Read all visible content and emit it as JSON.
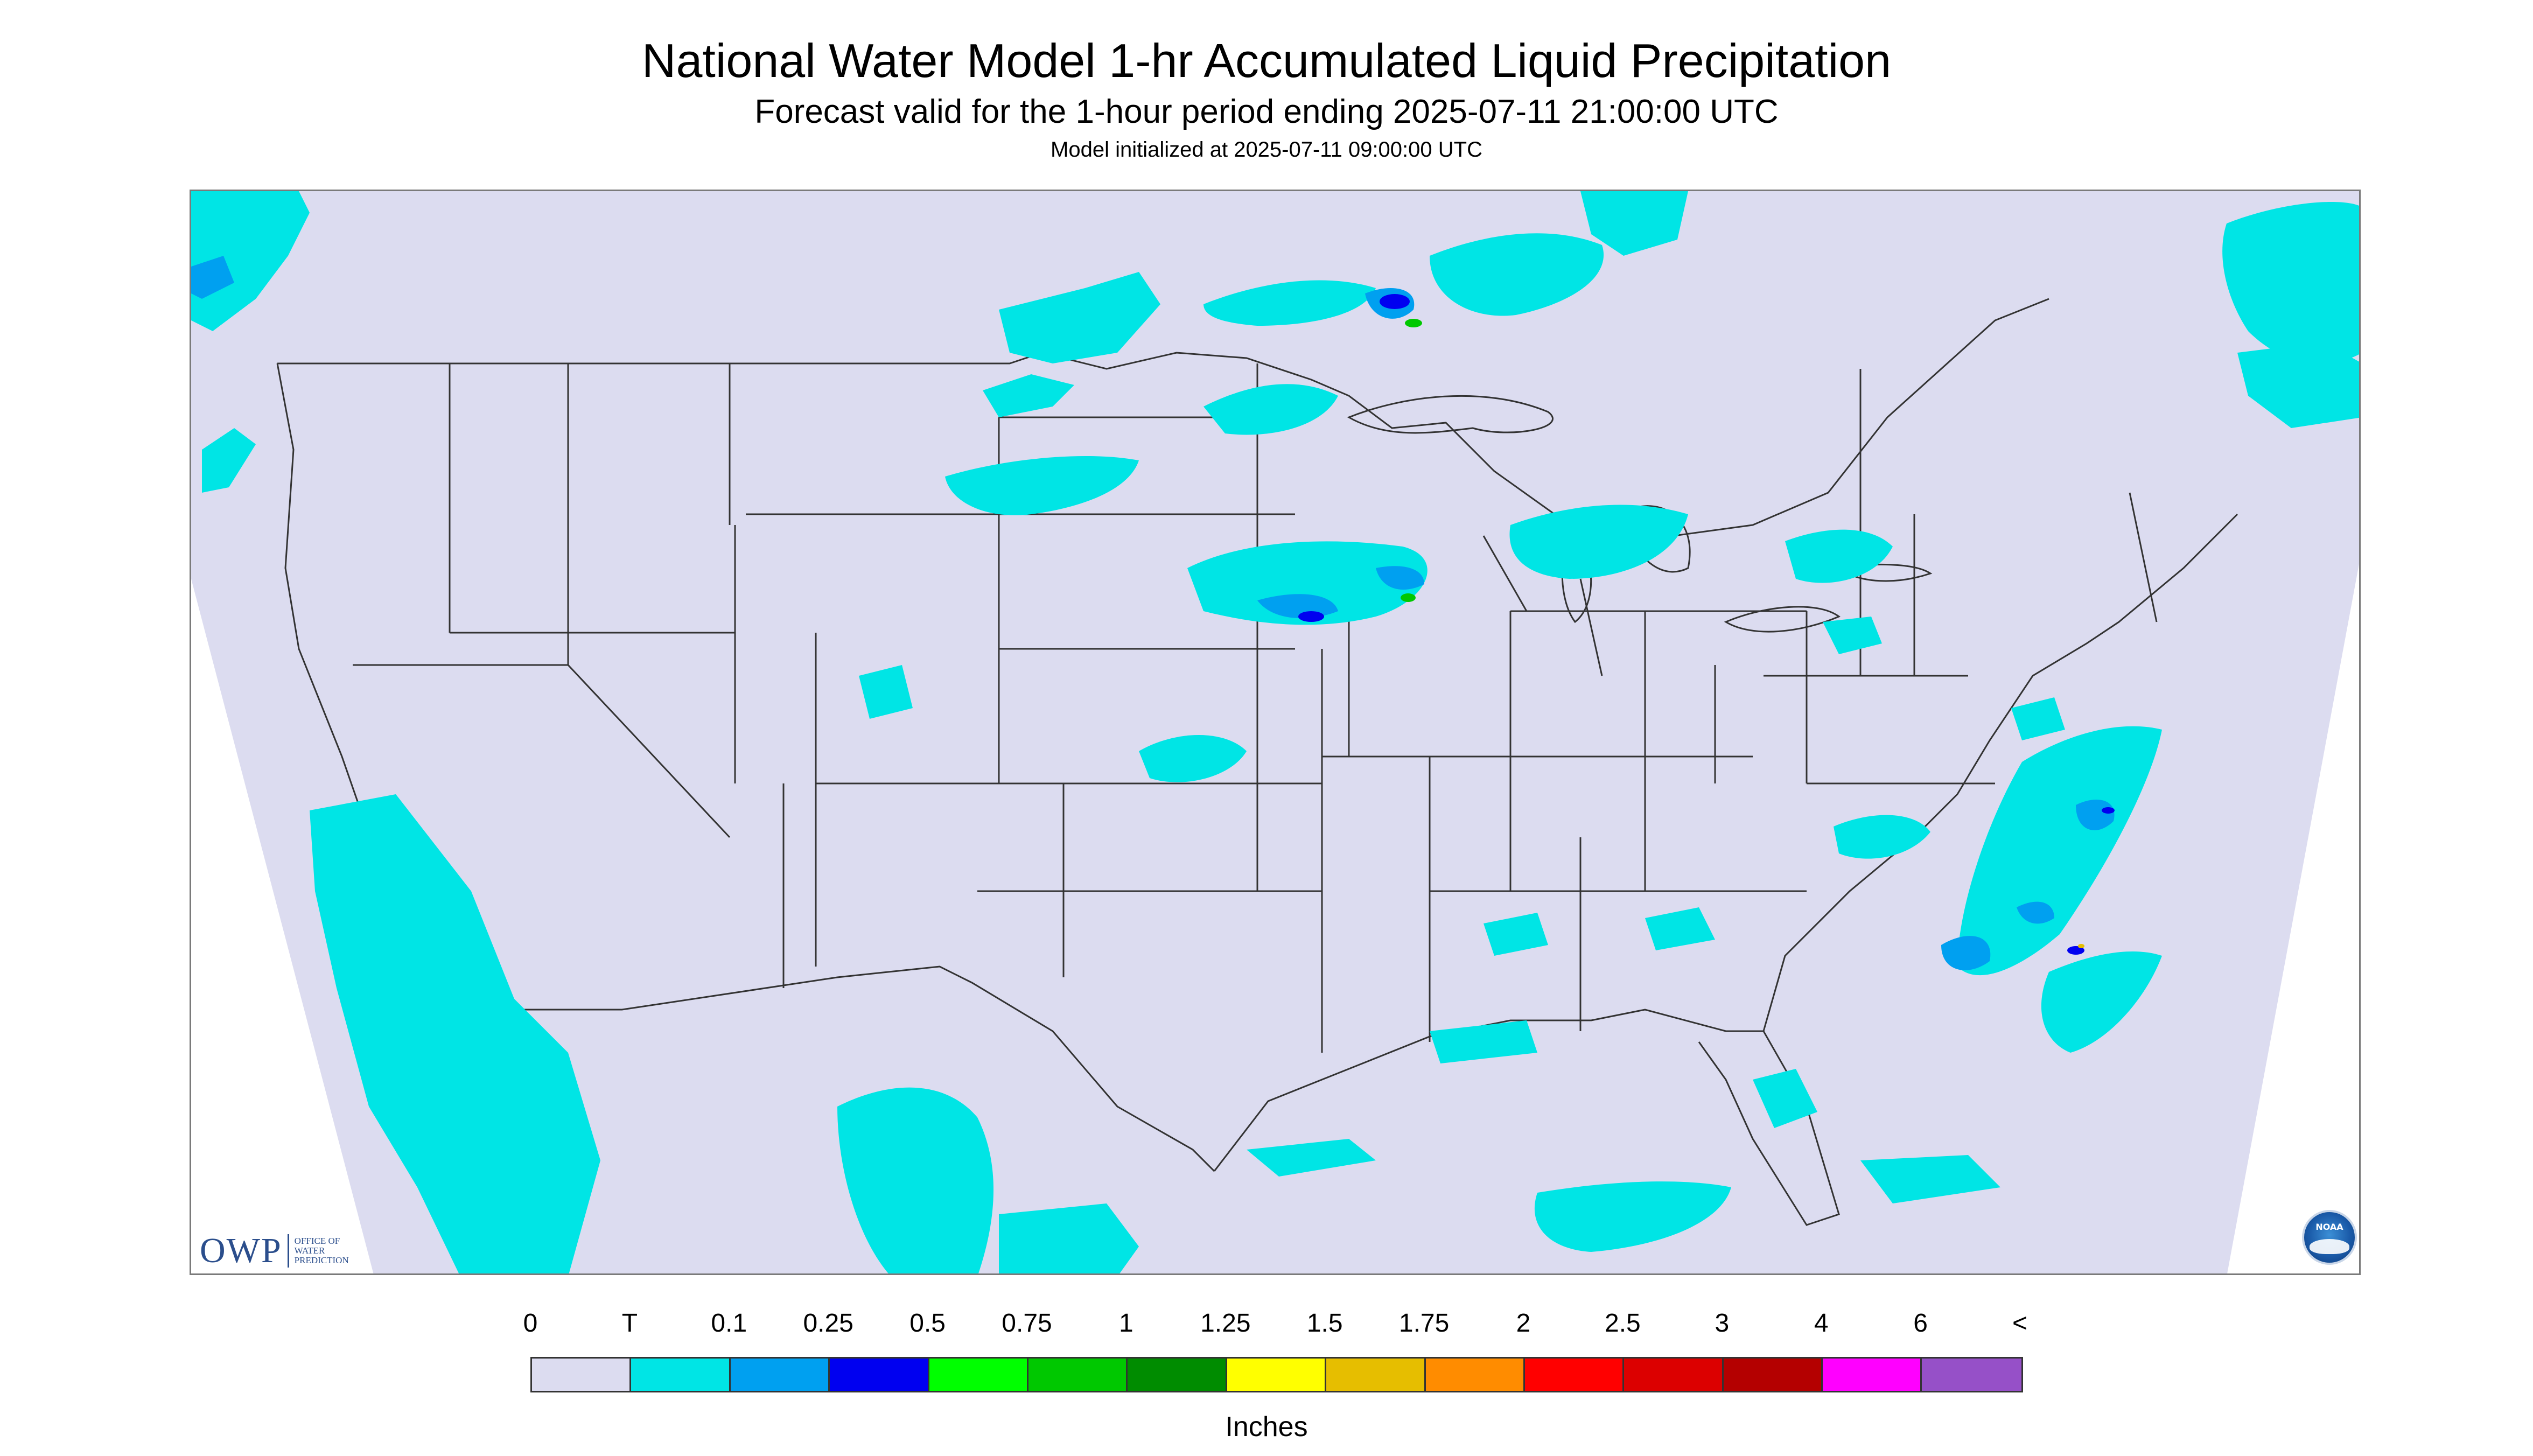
{
  "header": {
    "title": "National Water Model 1-hr Accumulated Liquid Precipitation",
    "subtitle": "Forecast valid for the 1-hour period ending 2025-07-11 21:00:00 UTC",
    "init_text": "Model initialized at 2025-07-11 09:00:00 UTC"
  },
  "logos": {
    "owp_mark": "OWP",
    "owp_text": "OFFICE OF WATER PREDICTION",
    "noaa_text": "NOAA"
  },
  "colors": {
    "background_field": "#dcdcf0",
    "precip_trace": "#00e5e5",
    "precip_light": "#00a0f0",
    "precip_heavy": "#0000f0",
    "boundary": "#333333"
  },
  "legend": {
    "labels": [
      "0",
      "T",
      "0.1",
      "0.25",
      "0.5",
      "0.75",
      "1",
      "1.25",
      "1.5",
      "1.75",
      "2",
      "2.5",
      "3",
      "4",
      "6",
      "<"
    ],
    "colors": [
      "#dcdcf0",
      "#00e5e5",
      "#00a0f0",
      "#0000f0",
      "#00ff00",
      "#00c800",
      "#008c00",
      "#ffff00",
      "#e6be00",
      "#ff8c00",
      "#ff0000",
      "#dc0000",
      "#b40000",
      "#ff00ff",
      "#9650c8"
    ],
    "units": "Inches"
  }
}
